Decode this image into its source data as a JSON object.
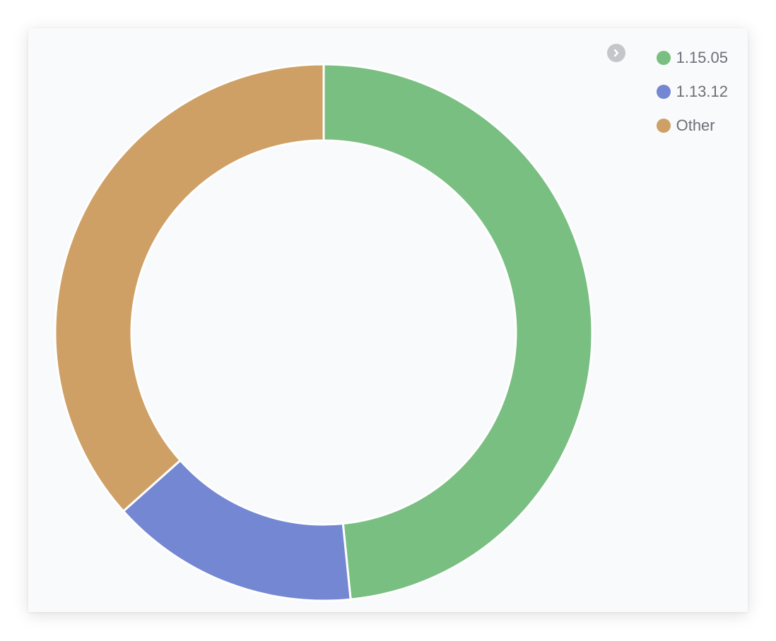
{
  "chart_data": {
    "type": "pie",
    "subtype": "donut",
    "categories": [
      "1.15.05",
      "1.13.12",
      "Other"
    ],
    "values": [
      48.4,
      15.0,
      36.6
    ],
    "colors": [
      "#7abf82",
      "#7487d3",
      "#cfa065"
    ],
    "legend_position": "top-right",
    "title": "",
    "xlabel": "",
    "ylabel": ""
  },
  "legend": {
    "toggle_icon": "chevron-right-icon",
    "items": [
      {
        "label": "1.15.05",
        "color": "#7abf82"
      },
      {
        "label": "1.13.12",
        "color": "#7487d3"
      },
      {
        "label": "Other",
        "color": "#cfa065"
      }
    ]
  }
}
